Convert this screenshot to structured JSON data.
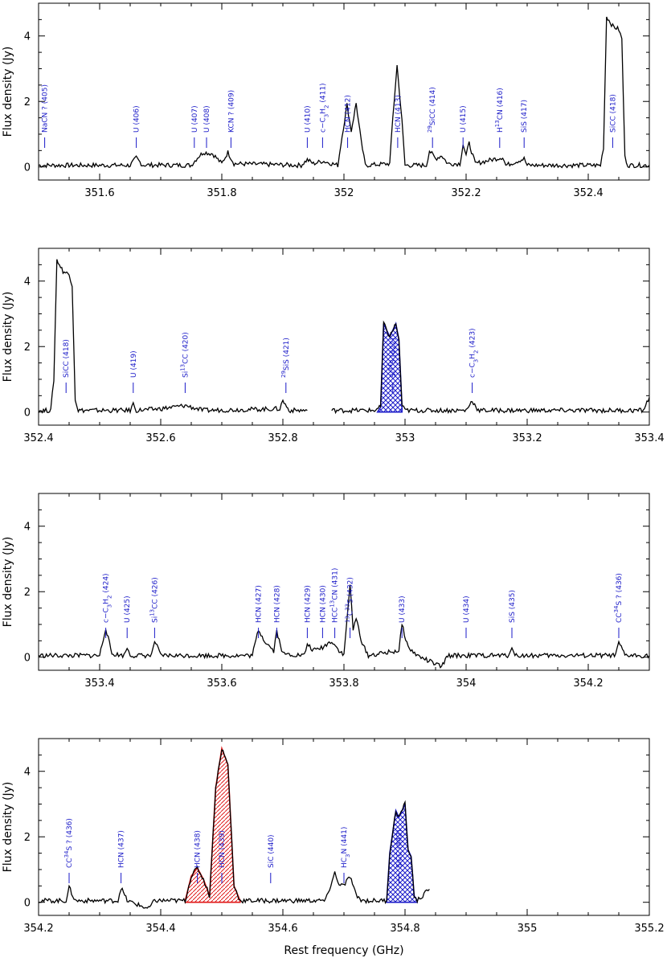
{
  "chart_data": {
    "type": "line",
    "xlabel": "Rest frequency (GHz)",
    "ylabel": "Flux density (Jy)",
    "panels": [
      {
        "xlim": [
          351.5,
          352.5
        ],
        "ylim": [
          -0.4,
          5.0
        ],
        "xticks": [
          351.6,
          351.8,
          352,
          352.2,
          352.4
        ],
        "xtick_labels": [
          "351.6",
          "351.8",
          "352",
          "352.2",
          "352.4"
        ],
        "yticks": [
          0,
          2,
          4
        ],
        "ytick_labels": [
          "0",
          "2",
          "4"
        ],
        "spectrum": [
          [
            351.5,
            0.05
          ],
          [
            351.6,
            0.05
          ],
          [
            351.65,
            0.05
          ],
          [
            351.66,
            0.28
          ],
          [
            351.67,
            0.06
          ],
          [
            351.75,
            0.05
          ],
          [
            351.76,
            0.28
          ],
          [
            351.77,
            0.45
          ],
          [
            351.785,
            0.4
          ],
          [
            351.8,
            0.1
          ],
          [
            351.81,
            0.45
          ],
          [
            351.82,
            0.1
          ],
          [
            351.93,
            0.05
          ],
          [
            351.94,
            0.22
          ],
          [
            351.95,
            0.1
          ],
          [
            351.965,
            0.18
          ],
          [
            351.99,
            0.05
          ],
          [
            351.995,
            0.7
          ],
          [
            352.005,
            1.9
          ],
          [
            352.012,
            1.1
          ],
          [
            352.02,
            1.95
          ],
          [
            352.028,
            0.8
          ],
          [
            352.035,
            0.05
          ],
          [
            352.075,
            0.1
          ],
          [
            352.08,
            1.5
          ],
          [
            352.087,
            3.1
          ],
          [
            352.095,
            1.4
          ],
          [
            352.1,
            0.05
          ],
          [
            352.135,
            0.05
          ],
          [
            352.14,
            0.5
          ],
          [
            352.15,
            0.25
          ],
          [
            352.16,
            0.35
          ],
          [
            352.17,
            0.1
          ],
          [
            352.19,
            0.1
          ],
          [
            352.195,
            0.7
          ],
          [
            352.2,
            0.35
          ],
          [
            352.205,
            0.72
          ],
          [
            352.215,
            0.1
          ],
          [
            352.26,
            0.3
          ],
          [
            352.265,
            0.05
          ],
          [
            352.295,
            0.25
          ],
          [
            352.3,
            0.05
          ],
          [
            352.42,
            0.05
          ],
          [
            352.425,
            0.6
          ],
          [
            352.43,
            4.6
          ],
          [
            352.44,
            4.3
          ],
          [
            352.45,
            4.2
          ],
          [
            352.455,
            3.9
          ],
          [
            352.46,
            0.3
          ],
          [
            352.465,
            0.05
          ],
          [
            352.5,
            0.05
          ]
        ],
        "markers": [
          {
            "x": 351.51,
            "label": "NaCN ? (405)"
          },
          {
            "x": 351.66,
            "label": "U (406)"
          },
          {
            "x": 351.755,
            "label": "U (407)"
          },
          {
            "x": 351.775,
            "label": "U (408)"
          },
          {
            "x": 351.815,
            "label": "KCN ? (409)"
          },
          {
            "x": 351.94,
            "label": "U (410)"
          },
          {
            "x": 351.965,
            "label": "c-C3H2 (411)"
          },
          {
            "x": 352.006,
            "label": "HCN (412)"
          },
          {
            "x": 352.088,
            "label": "HCN (413)"
          },
          {
            "x": 352.145,
            "label": "29SiCC (414)"
          },
          {
            "x": 352.195,
            "label": "U (415)"
          },
          {
            "x": 352.255,
            "label": "H13CN (416)"
          },
          {
            "x": 352.295,
            "label": "SiS (417)"
          },
          {
            "x": 352.44,
            "label": "SiCC (418)"
          }
        ],
        "fills": []
      },
      {
        "xlim": [
          352.4,
          353.4
        ],
        "ylim": [
          -0.4,
          5.0
        ],
        "xticks": [
          352.4,
          352.6,
          352.8,
          353,
          353.2,
          353.4
        ],
        "xtick_labels": [
          "352.4",
          "352.6",
          "352.8",
          "353",
          "353.2",
          "353.4"
        ],
        "yticks": [
          0,
          2,
          4
        ],
        "ytick_labels": [
          "0",
          "2",
          "4"
        ],
        "spectrum": [
          [
            352.4,
            0.05
          ],
          [
            352.42,
            0.05
          ],
          [
            352.425,
            1.0
          ],
          [
            352.43,
            4.65
          ],
          [
            352.44,
            4.3
          ],
          [
            352.45,
            4.2
          ],
          [
            352.455,
            3.9
          ],
          [
            352.46,
            0.4
          ],
          [
            352.465,
            0.05
          ],
          [
            352.55,
            0.05
          ],
          [
            352.555,
            0.25
          ],
          [
            352.56,
            0.05
          ],
          [
            352.6,
            0.1
          ],
          [
            352.64,
            0.2
          ],
          [
            352.67,
            0.05
          ],
          [
            352.795,
            0.1
          ],
          [
            352.8,
            0.35
          ],
          [
            352.81,
            0.05
          ],
          [
            352.84,
            0.05
          ],
          null,
          [
            352.88,
            0.05
          ],
          [
            352.95,
            0.05
          ],
          [
            352.96,
            0.15
          ],
          [
            352.965,
            2.7
          ],
          [
            352.975,
            2.3
          ],
          [
            352.985,
            2.7
          ],
          [
            352.99,
            2.2
          ],
          [
            352.995,
            0.2
          ],
          [
            353.0,
            0.05
          ],
          [
            353.1,
            0.05
          ],
          [
            353.11,
            0.35
          ],
          [
            353.12,
            0.05
          ],
          [
            353.39,
            0.05
          ],
          [
            353.4,
            0.45
          ]
        ],
        "markers": [
          {
            "x": 352.445,
            "label": "SiCC (418)"
          },
          {
            "x": 352.555,
            "label": "U (419)"
          },
          {
            "x": 352.64,
            "label": "Si13CC (420)"
          },
          {
            "x": 352.805,
            "label": "29SiS (421)"
          },
          {
            "x": 352.98,
            "label": "Si34S (422)"
          },
          {
            "x": 353.11,
            "label": "c-C3H2 (423)"
          }
        ],
        "fills": [
          {
            "from": 352.955,
            "to": 352.995,
            "color": "#1a1ac8",
            "pattern": "crosshatch"
          }
        ]
      },
      {
        "xlim": [
          353.3,
          354.3
        ],
        "ylim": [
          -0.4,
          5.0
        ],
        "xticks": [
          353.4,
          353.6,
          353.8,
          354,
          354.2
        ],
        "xtick_labels": [
          "353.4",
          "353.6",
          "353.8",
          "354",
          "354.2"
        ],
        "yticks": [
          0,
          2,
          4
        ],
        "ytick_labels": [
          "0",
          "2",
          "4"
        ],
        "spectrum": [
          [
            353.3,
            0.05
          ],
          [
            353.4,
            0.05
          ],
          [
            353.41,
            0.9
          ],
          [
            353.42,
            0.1
          ],
          [
            353.44,
            0.05
          ],
          [
            353.445,
            0.3
          ],
          [
            353.45,
            0.05
          ],
          [
            353.485,
            0.05
          ],
          [
            353.49,
            0.5
          ],
          [
            353.5,
            0.05
          ],
          [
            353.65,
            0.05
          ],
          [
            353.66,
            0.85
          ],
          [
            353.67,
            0.5
          ],
          [
            353.685,
            0.2
          ],
          [
            353.69,
            0.8
          ],
          [
            353.7,
            0.1
          ],
          [
            353.735,
            0.05
          ],
          [
            353.74,
            0.4
          ],
          [
            353.75,
            0.2
          ],
          [
            353.765,
            0.3
          ],
          [
            353.78,
            0.5
          ],
          [
            353.79,
            0.25
          ],
          [
            353.8,
            0.05
          ],
          [
            353.81,
            2.25
          ],
          [
            353.815,
            0.8
          ],
          [
            353.82,
            1.2
          ],
          [
            353.83,
            0.4
          ],
          [
            353.84,
            0.05
          ],
          [
            353.89,
            0.2
          ],
          [
            353.895,
            1.0
          ],
          [
            353.905,
            0.3
          ],
          [
            353.92,
            0.05
          ],
          [
            353.96,
            -0.3
          ],
          [
            353.97,
            0.05
          ],
          [
            354.07,
            0.05
          ],
          [
            354.075,
            0.35
          ],
          [
            354.08,
            0.05
          ],
          [
            354.245,
            0.05
          ],
          [
            354.25,
            0.45
          ],
          [
            354.26,
            0.05
          ],
          [
            354.3,
            0.05
          ]
        ],
        "markers": [
          {
            "x": 353.41,
            "label": "c-C3H2 (424)"
          },
          {
            "x": 353.445,
            "label": "U (425)"
          },
          {
            "x": 353.49,
            "label": "Si13CC (426)"
          },
          {
            "x": 353.66,
            "label": "HCN (427)"
          },
          {
            "x": 353.69,
            "label": "HCN (428)"
          },
          {
            "x": 353.74,
            "label": "HCN (429)"
          },
          {
            "x": 353.765,
            "label": "HCN (430)"
          },
          {
            "x": 353.785,
            "label": "HCC13CN (431)"
          },
          {
            "x": 353.81,
            "label": "13C33S (432)"
          },
          {
            "x": 353.895,
            "label": "U (433)"
          },
          {
            "x": 354.0,
            "label": "U (434)"
          },
          {
            "x": 354.075,
            "label": "SiS (435)"
          },
          {
            "x": 354.25,
            "label": "CC34S ? (436)"
          }
        ],
        "fills": []
      },
      {
        "xlim": [
          354.2,
          355.2
        ],
        "ylim": [
          -0.4,
          5.0
        ],
        "xticks": [
          354.2,
          354.4,
          354.6,
          354.8,
          355,
          355.2
        ],
        "xtick_labels": [
          "354.2",
          "354.4",
          "354.6",
          "354.8",
          "355",
          "355.2"
        ],
        "yticks": [
          0,
          2,
          4
        ],
        "ytick_labels": [
          "0",
          "2",
          "4"
        ],
        "spectrum": [
          [
            354.2,
            0.05
          ],
          [
            354.245,
            0.05
          ],
          [
            354.25,
            0.45
          ],
          [
            354.26,
            0.05
          ],
          [
            354.33,
            0.05
          ],
          [
            354.335,
            0.45
          ],
          [
            354.345,
            0.05
          ],
          [
            354.38,
            -0.2
          ],
          [
            354.39,
            0.05
          ],
          [
            354.44,
            0.05
          ],
          [
            354.45,
            0.8
          ],
          [
            354.46,
            1.05
          ],
          [
            354.47,
            0.7
          ],
          [
            354.48,
            0.2
          ],
          [
            354.49,
            3.5
          ],
          [
            354.5,
            4.7
          ],
          [
            354.51,
            4.2
          ],
          [
            354.52,
            0.5
          ],
          [
            354.53,
            0.05
          ],
          [
            354.67,
            0.05
          ],
          [
            354.685,
            0.9
          ],
          [
            354.69,
            0.6
          ],
          [
            354.7,
            0.5
          ],
          [
            354.71,
            0.8
          ],
          [
            354.72,
            0.2
          ],
          [
            354.73,
            0.05
          ],
          [
            354.77,
            0.05
          ],
          [
            354.775,
            1.5
          ],
          [
            354.785,
            2.8
          ],
          [
            354.79,
            2.6
          ],
          [
            354.8,
            3.0
          ],
          [
            354.805,
            1.6
          ],
          [
            354.81,
            1.4
          ],
          [
            354.815,
            0.2
          ],
          [
            354.82,
            0.05
          ],
          [
            354.84,
            0.4
          ]
        ],
        "markers": [
          {
            "x": 354.25,
            "label": "CC34S ? (436)"
          },
          {
            "x": 354.335,
            "label": "HCN (437)"
          },
          {
            "x": 354.46,
            "label": "HCN (438)"
          },
          {
            "x": 354.5,
            "label": "HCN (439)"
          },
          {
            "x": 354.58,
            "label": "SiC (440)"
          },
          {
            "x": 354.7,
            "label": "HC3N (441)"
          },
          {
            "x": 354.79,
            "label": "SiCC (442)"
          }
        ],
        "fills": [
          {
            "from": 354.44,
            "to": 354.53,
            "color": "#e01a1a",
            "pattern": "diagonal"
          },
          {
            "from": 354.77,
            "to": 354.82,
            "color": "#1a1ac8",
            "pattern": "crosshatch"
          }
        ]
      }
    ]
  }
}
